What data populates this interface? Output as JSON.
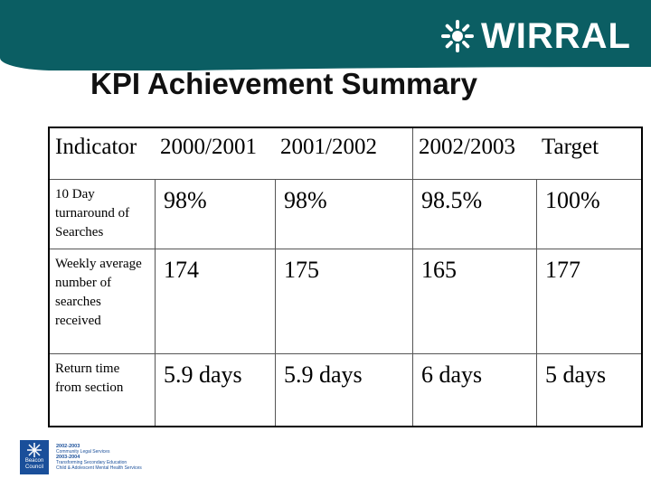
{
  "header": {
    "logo_text": "WIRRAL",
    "colors": {
      "band": "#0b5e63",
      "text": "#ffffff"
    }
  },
  "title": "KPI Achievement Summary",
  "table": {
    "headers": [
      "Indicator",
      "2000/2001",
      "2001/2002",
      "2002/2003",
      "Target"
    ],
    "rows": [
      {
        "label": "10 Day turnaround of Searches",
        "values": [
          "98%",
          "98%",
          "98.5%",
          "100%"
        ]
      },
      {
        "label": "Weekly average number of searches received",
        "values": [
          "174",
          "175",
          "165",
          "177"
        ]
      },
      {
        "label": "Return time from section",
        "values": [
          "5.9 days",
          "5.9 days",
          "6 days",
          "5 days"
        ]
      }
    ]
  },
  "footer": {
    "beacon_logo": "Beacon Council",
    "beacon_lines": [
      "2002-2003",
      "Community Legal Services",
      "2003-2004",
      "Transforming Secondary Education",
      "Child & Adolescent Mental Health Services"
    ]
  }
}
